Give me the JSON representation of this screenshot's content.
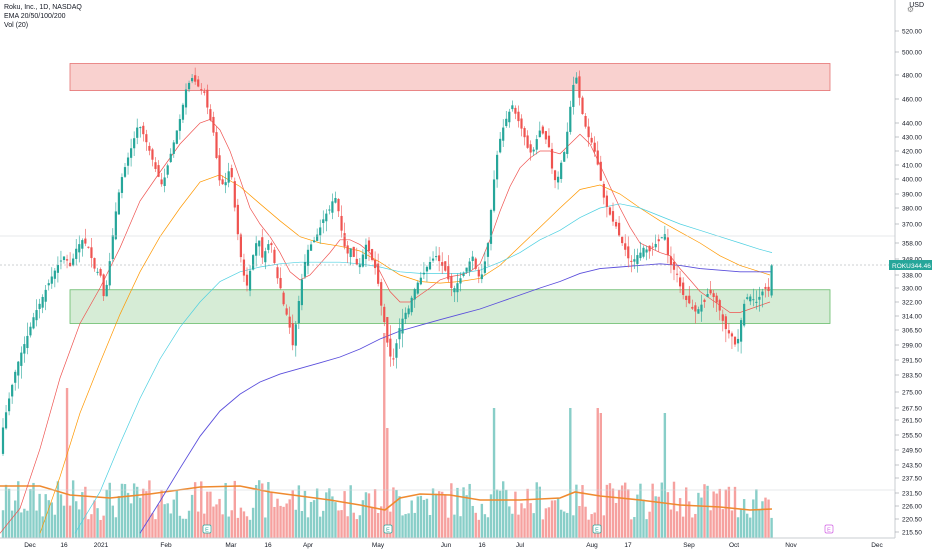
{
  "header": {
    "title": "Roku, Inc., 1D, NASDAQ",
    "indicator_ema": "EMA 20/50/100/200",
    "indicator_vol": "Vol (20)",
    "currency": "USD"
  },
  "price_tag": {
    "symbol": "ROKU",
    "value": "344.46"
  },
  "colors": {
    "up": "#26a69a",
    "down": "#ef5350",
    "ema20": "#ef5350",
    "ema50": "#ff9800",
    "ema100": "#4dd0e1",
    "ema200": "#5b4fdc",
    "vol_ma": "#ef8a2f",
    "resistance_zone": "#f8c9c7",
    "support_zone": "#cfe9cf"
  },
  "chart_data": {
    "type": "candlestick",
    "symbol": "ROKU",
    "timeframe": "1D",
    "exchange": "NASDAQ",
    "y_axis_ticks": [
      520.0,
      500.0,
      480.0,
      460.0,
      440.0,
      430.0,
      420.0,
      410.0,
      400.0,
      390.0,
      380.0,
      370.0,
      358.0,
      348.0,
      338.0,
      330.0,
      322.0,
      314.0,
      306.5,
      299.0,
      291.5,
      283.5,
      275.0,
      267.5,
      261.5,
      255.5,
      249.5,
      243.5,
      237.5,
      231.5,
      226.0,
      220.5,
      215.5
    ],
    "ylim": [
      212,
      530
    ],
    "x_axis_labels": [
      "Dec",
      "16",
      "2021",
      "Feb",
      "Mar",
      "16",
      "Apr",
      "May",
      "Jun",
      "16",
      "Jul",
      "Aug",
      "17",
      "Sep",
      "Oct",
      "Nov",
      "Dec"
    ],
    "zones": [
      {
        "name": "resistance",
        "low": 467,
        "high": 490
      },
      {
        "name": "support",
        "low": 310,
        "high": 329
      }
    ],
    "earnings_markers": [
      "E",
      "E",
      "E",
      "E"
    ],
    "close_path": [
      [
        0,
        248
      ],
      [
        6,
        262
      ],
      [
        12,
        275
      ],
      [
        18,
        288
      ],
      [
        24,
        297
      ],
      [
        30,
        305
      ],
      [
        36,
        315
      ],
      [
        42,
        322
      ],
      [
        48,
        330
      ],
      [
        54,
        338
      ],
      [
        60,
        345
      ],
      [
        66,
        350
      ],
      [
        72,
        343
      ],
      [
        78,
        355
      ],
      [
        84,
        360
      ],
      [
        90,
        355
      ],
      [
        96,
        342
      ],
      [
        102,
        338
      ],
      [
        106,
        322
      ],
      [
        110,
        340
      ],
      [
        116,
        372
      ],
      [
        122,
        398
      ],
      [
        128,
        412
      ],
      [
        134,
        425
      ],
      [
        140,
        440
      ],
      [
        146,
        430
      ],
      [
        152,
        418
      ],
      [
        158,
        405
      ],
      [
        164,
        395
      ],
      [
        170,
        412
      ],
      [
        176,
        428
      ],
      [
        182,
        445
      ],
      [
        188,
        470
      ],
      [
        194,
        478
      ],
      [
        200,
        470
      ],
      [
        206,
        465
      ],
      [
        210,
        448
      ],
      [
        216,
        430
      ],
      [
        220,
        400
      ],
      [
        226,
        395
      ],
      [
        232,
        410
      ],
      [
        236,
        382
      ],
      [
        240,
        360
      ],
      [
        244,
        342
      ],
      [
        248,
        330
      ],
      [
        252,
        342
      ],
      [
        256,
        355
      ],
      [
        260,
        362
      ],
      [
        264,
        348
      ],
      [
        268,
        355
      ],
      [
        272,
        360
      ],
      [
        278,
        338
      ],
      [
        282,
        330
      ],
      [
        286,
        318
      ],
      [
        290,
        312
      ],
      [
        294,
        298
      ],
      [
        298,
        312
      ],
      [
        302,
        330
      ],
      [
        306,
        345
      ],
      [
        310,
        355
      ],
      [
        316,
        360
      ],
      [
        320,
        365
      ],
      [
        326,
        375
      ],
      [
        332,
        380
      ],
      [
        336,
        390
      ],
      [
        340,
        378
      ],
      [
        344,
        362
      ],
      [
        348,
        350
      ],
      [
        352,
        355
      ],
      [
        356,
        348
      ],
      [
        360,
        342
      ],
      [
        364,
        350
      ],
      [
        368,
        358
      ],
      [
        372,
        350
      ],
      [
        378,
        340
      ],
      [
        382,
        322
      ],
      [
        386,
        310
      ],
      [
        390,
        296
      ],
      [
        394,
        290
      ],
      [
        398,
        300
      ],
      [
        402,
        310
      ],
      [
        406,
        315
      ],
      [
        410,
        318
      ],
      [
        414,
        326
      ],
      [
        418,
        332
      ],
      [
        422,
        336
      ],
      [
        426,
        340
      ],
      [
        430,
        345
      ],
      [
        434,
        348
      ],
      [
        438,
        350
      ],
      [
        442,
        345
      ],
      [
        446,
        342
      ],
      [
        450,
        335
      ],
      [
        454,
        328
      ],
      [
        458,
        332
      ],
      [
        462,
        336
      ],
      [
        466,
        340
      ],
      [
        470,
        345
      ],
      [
        474,
        350
      ],
      [
        478,
        340
      ],
      [
        482,
        335
      ],
      [
        486,
        345
      ],
      [
        490,
        360
      ],
      [
        494,
        390
      ],
      [
        498,
        415
      ],
      [
        502,
        430
      ],
      [
        506,
        440
      ],
      [
        510,
        448
      ],
      [
        514,
        455
      ],
      [
        518,
        445
      ],
      [
        522,
        438
      ],
      [
        526,
        430
      ],
      [
        530,
        420
      ],
      [
        534,
        418
      ],
      [
        538,
        428
      ],
      [
        542,
        436
      ],
      [
        546,
        430
      ],
      [
        550,
        425
      ],
      [
        554,
        405
      ],
      [
        558,
        396
      ],
      [
        562,
        410
      ],
      [
        566,
        420
      ],
      [
        570,
        440
      ],
      [
        574,
        470
      ],
      [
        578,
        478
      ],
      [
        582,
        455
      ],
      [
        586,
        440
      ],
      [
        590,
        430
      ],
      [
        594,
        425
      ],
      [
        598,
        415
      ],
      [
        602,
        400
      ],
      [
        606,
        385
      ],
      [
        610,
        378
      ],
      [
        614,
        372
      ],
      [
        618,
        368
      ],
      [
        622,
        360
      ],
      [
        626,
        355
      ],
      [
        630,
        348
      ],
      [
        634,
        346
      ],
      [
        638,
        350
      ],
      [
        642,
        352
      ],
      [
        646,
        356
      ],
      [
        650,
        352
      ],
      [
        654,
        355
      ],
      [
        658,
        358
      ],
      [
        662,
        360
      ],
      [
        666,
        365
      ],
      [
        670,
        348
      ],
      [
        674,
        342
      ],
      [
        678,
        340
      ],
      [
        682,
        330
      ],
      [
        686,
        324
      ],
      [
        690,
        322
      ],
      [
        694,
        318
      ],
      [
        698,
        316
      ],
      [
        702,
        320
      ],
      [
        706,
        322
      ],
      [
        710,
        328
      ],
      [
        714,
        326
      ],
      [
        718,
        322
      ],
      [
        722,
        316
      ],
      [
        726,
        308
      ],
      [
        730,
        305
      ],
      [
        734,
        303
      ],
      [
        738,
        297
      ],
      [
        742,
        310
      ],
      [
        746,
        322
      ],
      [
        750,
        326
      ],
      [
        754,
        324
      ],
      [
        758,
        322
      ],
      [
        762,
        326
      ],
      [
        766,
        330
      ],
      [
        770,
        328
      ],
      [
        773,
        344
      ]
    ],
    "ema20": [
      [
        0,
        215
      ],
      [
        20,
        225
      ],
      [
        40,
        250
      ],
      [
        60,
        282
      ],
      [
        80,
        310
      ],
      [
        100,
        330
      ],
      [
        120,
        355
      ],
      [
        140,
        385
      ],
      [
        160,
        405
      ],
      [
        180,
        425
      ],
      [
        200,
        440
      ],
      [
        210,
        443
      ],
      [
        220,
        435
      ],
      [
        230,
        420
      ],
      [
        240,
        400
      ],
      [
        250,
        380
      ],
      [
        260,
        370
      ],
      [
        270,
        362
      ],
      [
        280,
        352
      ],
      [
        290,
        340
      ],
      [
        300,
        335
      ],
      [
        310,
        338
      ],
      [
        320,
        345
      ],
      [
        330,
        352
      ],
      [
        340,
        360
      ],
      [
        350,
        360
      ],
      [
        360,
        357
      ],
      [
        370,
        352
      ],
      [
        380,
        340
      ],
      [
        390,
        328
      ],
      [
        400,
        322
      ],
      [
        410,
        322
      ],
      [
        420,
        326
      ],
      [
        430,
        330
      ],
      [
        440,
        335
      ],
      [
        450,
        337
      ],
      [
        460,
        338
      ],
      [
        470,
        340
      ],
      [
        480,
        345
      ],
      [
        490,
        360
      ],
      [
        500,
        378
      ],
      [
        510,
        395
      ],
      [
        520,
        408
      ],
      [
        530,
        415
      ],
      [
        540,
        420
      ],
      [
        550,
        420
      ],
      [
        560,
        418
      ],
      [
        570,
        425
      ],
      [
        580,
        432
      ],
      [
        590,
        425
      ],
      [
        600,
        410
      ],
      [
        610,
        395
      ],
      [
        620,
        380
      ],
      [
        630,
        368
      ],
      [
        640,
        358
      ],
      [
        650,
        355
      ],
      [
        660,
        352
      ],
      [
        670,
        350
      ],
      [
        680,
        342
      ],
      [
        690,
        335
      ],
      [
        700,
        328
      ],
      [
        710,
        324
      ],
      [
        720,
        320
      ],
      [
        730,
        316
      ],
      [
        740,
        316
      ],
      [
        750,
        318
      ],
      [
        760,
        320
      ],
      [
        770,
        322
      ]
    ],
    "ema50": [
      [
        40,
        215
      ],
      [
        60,
        238
      ],
      [
        80,
        265
      ],
      [
        100,
        290
      ],
      [
        120,
        315
      ],
      [
        140,
        340
      ],
      [
        160,
        362
      ],
      [
        180,
        380
      ],
      [
        200,
        398
      ],
      [
        220,
        403
      ],
      [
        240,
        395
      ],
      [
        260,
        383
      ],
      [
        280,
        372
      ],
      [
        300,
        362
      ],
      [
        320,
        358
      ],
      [
        340,
        356
      ],
      [
        360,
        353
      ],
      [
        380,
        346
      ],
      [
        400,
        338
      ],
      [
        420,
        334
      ],
      [
        440,
        333
      ],
      [
        460,
        334
      ],
      [
        480,
        336
      ],
      [
        500,
        344
      ],
      [
        520,
        356
      ],
      [
        540,
        368
      ],
      [
        560,
        380
      ],
      [
        580,
        393
      ],
      [
        600,
        396
      ],
      [
        620,
        390
      ],
      [
        640,
        380
      ],
      [
        660,
        372
      ],
      [
        680,
        365
      ],
      [
        700,
        358
      ],
      [
        720,
        350
      ],
      [
        740,
        344
      ],
      [
        760,
        340
      ],
      [
        770,
        338
      ]
    ],
    "ema100": [
      [
        75,
        215
      ],
      [
        100,
        232
      ],
      [
        120,
        252
      ],
      [
        140,
        272
      ],
      [
        160,
        292
      ],
      [
        180,
        308
      ],
      [
        200,
        322
      ],
      [
        220,
        334
      ],
      [
        240,
        340
      ],
      [
        260,
        343
      ],
      [
        280,
        345
      ],
      [
        300,
        346
      ],
      [
        320,
        346
      ],
      [
        340,
        346
      ],
      [
        360,
        345
      ],
      [
        380,
        343
      ],
      [
        400,
        340
      ],
      [
        420,
        339
      ],
      [
        440,
        339
      ],
      [
        460,
        339
      ],
      [
        480,
        341
      ],
      [
        500,
        346
      ],
      [
        520,
        352
      ],
      [
        540,
        360
      ],
      [
        560,
        366
      ],
      [
        580,
        374
      ],
      [
        600,
        380
      ],
      [
        620,
        383
      ],
      [
        640,
        380
      ],
      [
        660,
        375
      ],
      [
        680,
        370
      ],
      [
        700,
        366
      ],
      [
        720,
        362
      ],
      [
        740,
        358
      ],
      [
        760,
        354
      ],
      [
        772,
        352
      ]
    ],
    "ema200": [
      [
        140,
        215
      ],
      [
        160,
        228
      ],
      [
        180,
        242
      ],
      [
        200,
        255
      ],
      [
        220,
        266
      ],
      [
        240,
        274
      ],
      [
        260,
        280
      ],
      [
        280,
        284
      ],
      [
        300,
        287
      ],
      [
        320,
        290
      ],
      [
        340,
        293
      ],
      [
        360,
        297
      ],
      [
        380,
        302
      ],
      [
        400,
        306
      ],
      [
        420,
        309
      ],
      [
        440,
        312
      ],
      [
        460,
        315
      ],
      [
        480,
        318
      ],
      [
        500,
        322
      ],
      [
        520,
        326
      ],
      [
        540,
        330
      ],
      [
        560,
        334
      ],
      [
        580,
        339
      ],
      [
        600,
        342
      ],
      [
        620,
        343
      ],
      [
        640,
        344
      ],
      [
        660,
        345
      ],
      [
        680,
        344
      ],
      [
        700,
        342
      ],
      [
        720,
        341
      ],
      [
        740,
        340
      ],
      [
        760,
        340
      ],
      [
        772,
        340
      ]
    ]
  }
}
